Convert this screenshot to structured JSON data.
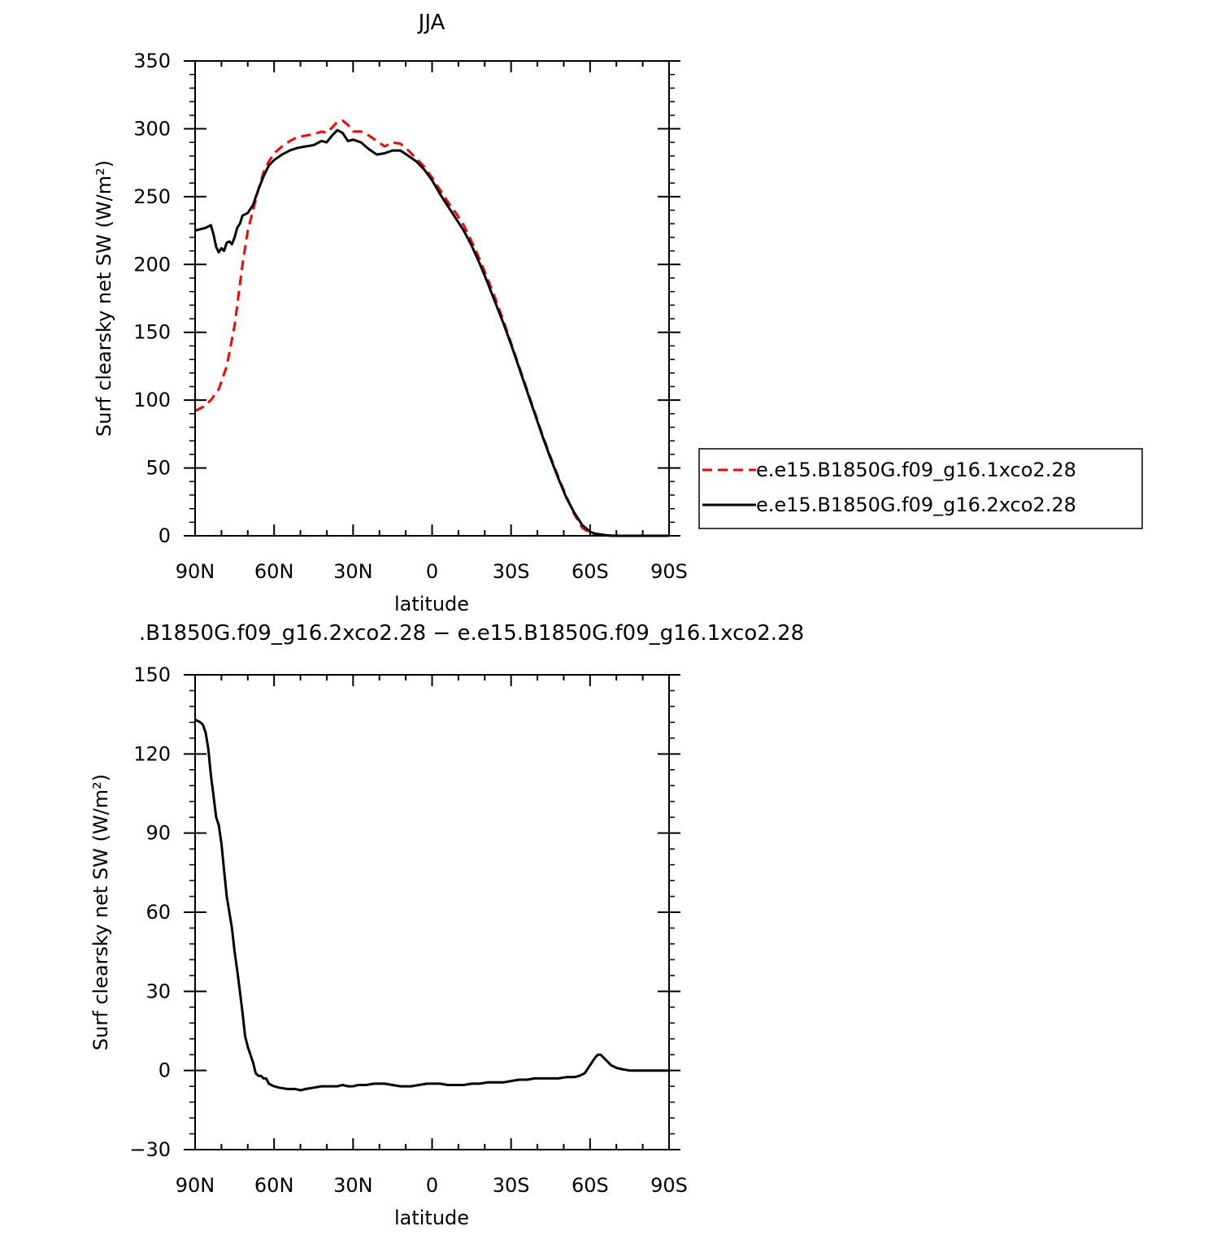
{
  "colors": {
    "background": "#ffffff",
    "axes": "#000000",
    "series_dashed": "#ff0000",
    "series_solid": "#000000"
  },
  "legend": {
    "items": [
      {
        "label": "e.e15.B1850G.f09_g16.1xco2.28",
        "style": "dashed",
        "color": "#ff0000"
      },
      {
        "label": "e.e15.B1850G.f09_g16.2xco2.28",
        "style": "solid",
        "color": "#000000"
      }
    ]
  },
  "chart_data": [
    {
      "type": "line",
      "title": "JJA",
      "xlabel": "latitude",
      "ylabel": "Surf clearsky net SW (W/m²)",
      "xlim": [
        90,
        -90
      ],
      "ylim": [
        0,
        350
      ],
      "xticks": [
        90,
        60,
        30,
        0,
        -30,
        -60,
        -90
      ],
      "xticklabels": [
        "90N",
        "60N",
        "30N",
        "0",
        "30S",
        "60S",
        "90S"
      ],
      "yticks": [
        0,
        50,
        100,
        150,
        200,
        250,
        300,
        350
      ],
      "yticklabels": [
        "0",
        "50",
        "100",
        "150",
        "200",
        "250",
        "300",
        "350"
      ],
      "grid": false,
      "legend_position": "right",
      "series": [
        {
          "name": "e.e15.B1850G.f09_g16.1xco2.28",
          "style": "dashed",
          "color": "#ff0000",
          "x": [
            90,
            87,
            84,
            81,
            78,
            75,
            72,
            70,
            68,
            66,
            64,
            62,
            60,
            57,
            54,
            51,
            48,
            45,
            42,
            40,
            38,
            36,
            34,
            32,
            30,
            27,
            24,
            21,
            18,
            15,
            12,
            9,
            6,
            3,
            0,
            -3,
            -6,
            -9,
            -12,
            -15,
            -18,
            -21,
            -24,
            -27,
            -30,
            -33,
            -36,
            -39,
            -42,
            -45,
            -48,
            -51,
            -54,
            -57,
            -60,
            -62,
            -64,
            -66,
            -68,
            -70,
            -72,
            -75,
            -80,
            -85,
            -90
          ],
          "y": [
            92,
            95,
            100,
            108,
            125,
            155,
            200,
            225,
            240,
            255,
            268,
            276,
            282,
            287,
            291,
            294,
            295,
            296,
            298,
            297,
            301,
            305,
            306,
            303,
            298,
            298,
            295,
            291,
            287,
            290,
            289,
            284,
            278,
            272,
            264,
            255,
            246,
            238,
            229,
            217,
            204,
            190,
            175,
            159,
            142,
            125,
            108,
            91,
            74,
            58,
            43,
            29,
            16,
            6,
            2,
            1,
            0.5,
            0.2,
            0,
            0,
            0,
            0,
            0,
            0,
            0
          ]
        },
        {
          "name": "e.e15.B1850G.f09_g16.2xco2.28",
          "style": "solid",
          "color": "#000000",
          "x": [
            90,
            88,
            86,
            84,
            83,
            82,
            81,
            80,
            79,
            78,
            77,
            76,
            75,
            74,
            73,
            72,
            70,
            68,
            66,
            64,
            62,
            60,
            57,
            54,
            51,
            48,
            45,
            42,
            40,
            38,
            36,
            34,
            32,
            30,
            27,
            24,
            21,
            18,
            15,
            12,
            9,
            6,
            3,
            0,
            -3,
            -6,
            -9,
            -12,
            -15,
            -18,
            -21,
            -24,
            -27,
            -30,
            -33,
            -36,
            -39,
            -42,
            -45,
            -48,
            -51,
            -54,
            -57,
            -60,
            -62,
            -64,
            -66,
            -68,
            -70,
            -72,
            -75,
            -80,
            -85,
            -90
          ],
          "y": [
            225,
            226,
            227,
            229,
            222,
            213,
            209,
            212,
            210,
            216,
            217,
            215,
            220,
            227,
            230,
            236,
            238,
            244,
            255,
            265,
            273,
            277,
            281,
            284,
            286,
            287,
            288,
            291,
            290,
            295,
            299,
            297,
            291,
            292,
            290,
            285,
            281,
            282,
            284,
            284,
            280,
            276,
            270,
            262,
            252,
            243,
            234,
            225,
            214,
            201,
            187,
            172,
            157,
            141,
            124,
            107,
            90,
            73,
            57,
            42,
            28,
            17,
            8,
            3,
            1.5,
            1,
            0.5,
            0.2,
            0,
            0,
            0,
            0,
            0,
            0
          ]
        }
      ]
    },
    {
      "type": "line",
      "title": ".B1850G.f09_g16.2xco2.28 − e.e15.B1850G.f09_g16.1xco2.28",
      "xlabel": "latitude",
      "ylabel": "Surf clearsky net SW (W/m²)",
      "xlim": [
        90,
        -90
      ],
      "ylim": [
        -30,
        150
      ],
      "xticks": [
        90,
        60,
        30,
        0,
        -30,
        -60,
        -90
      ],
      "xticklabels": [
        "90N",
        "60N",
        "30N",
        "0",
        "30S",
        "60S",
        "90S"
      ],
      "yticks": [
        -30,
        0,
        30,
        60,
        90,
        120,
        150
      ],
      "yticklabels": [
        "−30",
        "0",
        "30",
        "60",
        "90",
        "120",
        "150"
      ],
      "grid": false,
      "series": [
        {
          "style": "solid",
          "color": "#000000",
          "x": [
            90,
            88,
            87,
            86,
            85,
            84,
            83,
            82,
            81,
            80,
            79,
            78,
            77,
            76,
            75,
            74,
            73,
            72,
            71,
            70,
            69,
            68,
            67,
            66,
            65,
            64,
            63,
            62,
            61,
            60,
            58,
            55,
            52,
            50,
            48,
            45,
            42,
            40,
            38,
            36,
            34,
            32,
            30,
            28,
            25,
            22,
            20,
            18,
            15,
            12,
            10,
            8,
            5,
            2,
            0,
            -3,
            -6,
            -9,
            -12,
            -15,
            -18,
            -21,
            -24,
            -27,
            -30,
            -33,
            -36,
            -39,
            -42,
            -45,
            -48,
            -51,
            -54,
            -56,
            -58,
            -60,
            -62,
            -63,
            -64,
            -66,
            -68,
            -70,
            -72,
            -75,
            -80,
            -85,
            -90
          ],
          "y": [
            133,
            132,
            131,
            128,
            122,
            112,
            104,
            96,
            93,
            86,
            76,
            66,
            60,
            54,
            45,
            38,
            30,
            22,
            13,
            9,
            6,
            3,
            -1,
            -2,
            -2,
            -3,
            -3,
            -5,
            -5.5,
            -6,
            -6.5,
            -7,
            -7,
            -7.5,
            -7,
            -6.5,
            -6,
            -6,
            -6,
            -6,
            -5.5,
            -6,
            -6,
            -5.5,
            -5.5,
            -5,
            -5,
            -5,
            -5.5,
            -6,
            -6,
            -6,
            -5.5,
            -5,
            -5,
            -5,
            -5.5,
            -5.5,
            -5.5,
            -5,
            -5,
            -4.5,
            -4.5,
            -4.5,
            -4,
            -3.5,
            -3.5,
            -3,
            -3,
            -3,
            -3,
            -2.5,
            -2.5,
            -2,
            -1,
            2,
            5,
            6,
            6,
            4,
            2,
            1,
            0.5,
            0,
            0,
            0,
            0
          ]
        }
      ]
    }
  ]
}
